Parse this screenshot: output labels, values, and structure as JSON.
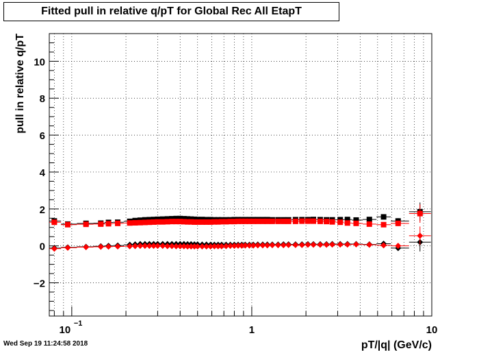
{
  "title": "Fitted pull in relative q/pT for Global Rec All EtapT",
  "timestamp": "Wed Sep 19 11:24:58 2018",
  "chart_data": {
    "type": "scatter",
    "title": "Fitted pull in relative q/pT for Global Rec All EtapT",
    "xlabel": "pT/|q| (GeV/c)",
    "ylabel": "pull in relative q/pT",
    "xscale": "log",
    "xlim": [
      0.075,
      10
    ],
    "ylim": [
      -3.8,
      11.5
    ],
    "x_ticks": [
      {
        "value": 0.1,
        "label": "10",
        "sup": "−1"
      },
      {
        "value": 1,
        "label": "1",
        "sup": ""
      },
      {
        "value": 10,
        "label": "10",
        "sup": ""
      }
    ],
    "y_ticks": [
      {
        "value": -2,
        "label": "−2"
      },
      {
        "value": 0,
        "label": "0"
      },
      {
        "value": 2,
        "label": "2"
      },
      {
        "value": 4,
        "label": "4"
      },
      {
        "value": 6,
        "label": "6"
      },
      {
        "value": 8,
        "label": "8"
      },
      {
        "value": 10,
        "label": "10"
      }
    ],
    "grid": true,
    "x": [
      0.08,
      0.095,
      0.12,
      0.145,
      0.16,
      0.18,
      0.21,
      0.225,
      0.24,
      0.255,
      0.27,
      0.285,
      0.3,
      0.32,
      0.34,
      0.36,
      0.38,
      0.4,
      0.42,
      0.44,
      0.46,
      0.48,
      0.5,
      0.53,
      0.56,
      0.59,
      0.62,
      0.65,
      0.68,
      0.72,
      0.76,
      0.8,
      0.84,
      0.88,
      0.92,
      0.97,
      1.02,
      1.08,
      1.15,
      1.22,
      1.3,
      1.4,
      1.5,
      1.6,
      1.75,
      1.9,
      2.05,
      2.2,
      2.4,
      2.6,
      2.8,
      3.1,
      3.4,
      3.8,
      4.5,
      5.4,
      6.5,
      8.6
    ],
    "series": [
      {
        "marker": "square",
        "color": "#000000",
        "values": [
          1.35,
          1.18,
          1.22,
          1.23,
          1.27,
          1.28,
          1.33,
          1.37,
          1.39,
          1.41,
          1.42,
          1.43,
          1.44,
          1.45,
          1.46,
          1.47,
          1.48,
          1.48,
          1.47,
          1.46,
          1.45,
          1.44,
          1.43,
          1.43,
          1.42,
          1.42,
          1.41,
          1.41,
          1.41,
          1.41,
          1.41,
          1.42,
          1.42,
          1.42,
          1.42,
          1.42,
          1.42,
          1.42,
          1.42,
          1.42,
          1.41,
          1.41,
          1.41,
          1.41,
          1.42,
          1.42,
          1.42,
          1.43,
          1.42,
          1.41,
          1.41,
          1.42,
          1.43,
          1.4,
          1.43,
          1.57,
          1.35,
          1.85
        ],
        "errors": [
          0.06,
          0.05,
          0.04,
          0.04,
          0.04,
          0.04,
          0.03,
          0.03,
          0.03,
          0.03,
          0.03,
          0.03,
          0.03,
          0.03,
          0.03,
          0.03,
          0.03,
          0.03,
          0.03,
          0.03,
          0.03,
          0.03,
          0.03,
          0.03,
          0.03,
          0.03,
          0.03,
          0.03,
          0.03,
          0.03,
          0.03,
          0.03,
          0.03,
          0.03,
          0.03,
          0.03,
          0.03,
          0.03,
          0.03,
          0.03,
          0.03,
          0.03,
          0.03,
          0.03,
          0.03,
          0.03,
          0.03,
          0.03,
          0.04,
          0.04,
          0.04,
          0.05,
          0.05,
          0.06,
          0.08,
          0.1,
          0.15,
          0.5
        ]
      },
      {
        "marker": "square",
        "color": "#ff0000",
        "values": [
          1.28,
          1.15,
          1.17,
          1.18,
          1.2,
          1.22,
          1.24,
          1.25,
          1.26,
          1.27,
          1.28,
          1.29,
          1.3,
          1.3,
          1.31,
          1.32,
          1.32,
          1.32,
          1.31,
          1.3,
          1.3,
          1.29,
          1.29,
          1.29,
          1.29,
          1.29,
          1.3,
          1.3,
          1.31,
          1.31,
          1.32,
          1.32,
          1.33,
          1.33,
          1.33,
          1.33,
          1.33,
          1.33,
          1.33,
          1.33,
          1.33,
          1.33,
          1.33,
          1.33,
          1.33,
          1.34,
          1.34,
          1.34,
          1.33,
          1.32,
          1.3,
          1.28,
          1.24,
          1.22,
          1.18,
          1.15,
          1.22,
          1.75
        ],
        "errors": [
          0.06,
          0.05,
          0.04,
          0.04,
          0.04,
          0.04,
          0.03,
          0.03,
          0.03,
          0.03,
          0.03,
          0.03,
          0.03,
          0.03,
          0.03,
          0.03,
          0.03,
          0.03,
          0.03,
          0.03,
          0.03,
          0.03,
          0.03,
          0.03,
          0.03,
          0.03,
          0.03,
          0.03,
          0.03,
          0.03,
          0.03,
          0.03,
          0.03,
          0.03,
          0.03,
          0.03,
          0.03,
          0.03,
          0.03,
          0.03,
          0.03,
          0.03,
          0.03,
          0.03,
          0.03,
          0.03,
          0.03,
          0.03,
          0.04,
          0.04,
          0.04,
          0.05,
          0.05,
          0.06,
          0.08,
          0.1,
          0.15,
          0.5
        ]
      },
      {
        "marker": "diamond",
        "color": "#000000",
        "values": [
          -0.12,
          -0.08,
          -0.05,
          -0.02,
          0.0,
          0.02,
          0.06,
          0.08,
          0.1,
          0.1,
          0.1,
          0.1,
          0.1,
          0.1,
          0.1,
          0.1,
          0.1,
          0.1,
          0.1,
          0.09,
          0.09,
          0.08,
          0.08,
          0.07,
          0.07,
          0.06,
          0.06,
          0.06,
          0.06,
          0.06,
          0.06,
          0.06,
          0.06,
          0.06,
          0.06,
          0.06,
          0.06,
          0.07,
          0.07,
          0.07,
          0.07,
          0.07,
          0.08,
          0.08,
          0.08,
          0.08,
          0.09,
          0.09,
          0.09,
          0.09,
          0.1,
          0.1,
          0.1,
          0.1,
          0.08,
          0.12,
          -0.12,
          0.2
        ],
        "errors": [
          0.06,
          0.05,
          0.04,
          0.04,
          0.04,
          0.04,
          0.03,
          0.03,
          0.03,
          0.03,
          0.03,
          0.03,
          0.03,
          0.03,
          0.03,
          0.03,
          0.03,
          0.03,
          0.03,
          0.03,
          0.03,
          0.03,
          0.03,
          0.03,
          0.03,
          0.03,
          0.03,
          0.03,
          0.03,
          0.03,
          0.03,
          0.03,
          0.03,
          0.03,
          0.03,
          0.03,
          0.03,
          0.03,
          0.03,
          0.03,
          0.03,
          0.03,
          0.03,
          0.03,
          0.03,
          0.03,
          0.03,
          0.03,
          0.04,
          0.04,
          0.04,
          0.05,
          0.05,
          0.06,
          0.08,
          0.1,
          0.15,
          0.5
        ]
      },
      {
        "marker": "diamond",
        "color": "#ff0000",
        "values": [
          -0.15,
          -0.1,
          -0.07,
          -0.05,
          -0.04,
          -0.03,
          -0.02,
          -0.01,
          0.0,
          0.0,
          0.0,
          0.0,
          0.0,
          0.0,
          -0.01,
          -0.01,
          -0.02,
          -0.02,
          -0.02,
          -0.03,
          -0.03,
          -0.03,
          -0.03,
          -0.03,
          -0.03,
          -0.03,
          -0.02,
          -0.02,
          -0.02,
          -0.01,
          0.0,
          0.0,
          0.01,
          0.01,
          0.02,
          0.02,
          0.02,
          0.03,
          0.03,
          0.03,
          0.04,
          0.04,
          0.04,
          0.05,
          0.05,
          0.05,
          0.06,
          0.06,
          0.06,
          0.06,
          0.07,
          0.07,
          0.07,
          0.08,
          0.06,
          0.03,
          0.0,
          0.55
        ],
        "errors": [
          0.06,
          0.05,
          0.04,
          0.04,
          0.04,
          0.04,
          0.03,
          0.03,
          0.03,
          0.03,
          0.03,
          0.03,
          0.03,
          0.03,
          0.03,
          0.03,
          0.03,
          0.03,
          0.03,
          0.03,
          0.03,
          0.03,
          0.03,
          0.03,
          0.03,
          0.03,
          0.03,
          0.03,
          0.03,
          0.03,
          0.03,
          0.03,
          0.03,
          0.03,
          0.03,
          0.03,
          0.03,
          0.03,
          0.03,
          0.03,
          0.03,
          0.03,
          0.03,
          0.03,
          0.03,
          0.03,
          0.03,
          0.03,
          0.04,
          0.04,
          0.04,
          0.05,
          0.05,
          0.06,
          0.08,
          0.1,
          0.15,
          0.5
        ]
      }
    ]
  }
}
